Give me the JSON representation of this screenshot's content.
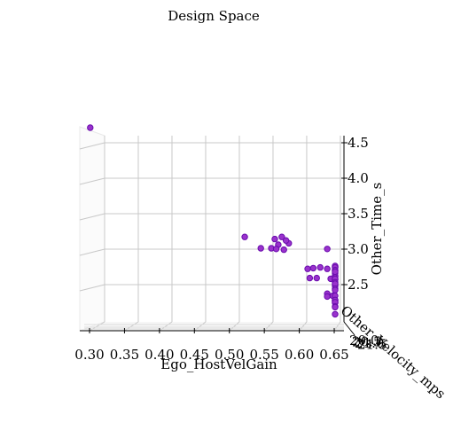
{
  "chart_data": {
    "type": "scatter",
    "projection": "3d",
    "title": "Design Space",
    "xlabel": "Ego_HostVelGain",
    "ylabel": "Other_Velocity_mps",
    "zlabel": "Other_Time_s",
    "xlim": [
      0.3,
      0.65
    ],
    "zlim": [
      2.0,
      4.6
    ],
    "x_ticks": [
      "0.30",
      "0.35",
      "0.40",
      "0.45",
      "0.50",
      "0.55",
      "0.60",
      "0.65"
    ],
    "y_ticks": [
      "20.0",
      "20.5",
      "21.0",
      "21.5"
    ],
    "z_ticks": [
      "2.5",
      "3.0",
      "3.5",
      "4.0",
      "4.5"
    ],
    "grid": true,
    "marker_color": "#9932cc",
    "marker_edge_color": "#6a0dad",
    "series": [
      {
        "points": [
          {
            "x": 0.301,
            "z": 4.75
          },
          {
            "x": 0.522,
            "z": 3.21
          },
          {
            "x": 0.545,
            "z": 3.05
          },
          {
            "x": 0.56,
            "z": 3.05
          },
          {
            "x": 0.565,
            "z": 3.18
          },
          {
            "x": 0.57,
            "z": 3.1
          },
          {
            "x": 0.575,
            "z": 3.21
          },
          {
            "x": 0.578,
            "z": 3.03
          },
          {
            "x": 0.585,
            "z": 3.12
          },
          {
            "x": 0.64,
            "z": 3.04
          },
          {
            "x": 0.567,
            "z": 3.04
          },
          {
            "x": 0.581,
            "z": 3.16
          },
          {
            "x": 0.612,
            "z": 2.76
          },
          {
            "x": 0.62,
            "z": 2.77
          },
          {
            "x": 0.63,
            "z": 2.78
          },
          {
            "x": 0.64,
            "z": 2.76
          },
          {
            "x": 0.652,
            "z": 2.79
          },
          {
            "x": 0.66,
            "z": 2.78
          },
          {
            "x": 0.67,
            "z": 2.8
          },
          {
            "x": 0.68,
            "z": 2.78
          },
          {
            "x": 0.69,
            "z": 2.74
          },
          {
            "x": 0.71,
            "z": 2.74
          },
          {
            "x": 0.615,
            "z": 2.63
          },
          {
            "x": 0.625,
            "z": 2.63
          },
          {
            "x": 0.645,
            "z": 2.62
          },
          {
            "x": 0.66,
            "z": 2.65
          },
          {
            "x": 0.672,
            "z": 2.66
          },
          {
            "x": 0.682,
            "z": 2.61
          },
          {
            "x": 0.693,
            "z": 2.61
          },
          {
            "x": 0.702,
            "z": 2.62
          },
          {
            "x": 0.706,
            "z": 2.57
          },
          {
            "x": 0.712,
            "z": 2.52
          },
          {
            "x": 0.69,
            "z": 2.54
          },
          {
            "x": 0.676,
            "z": 2.55
          },
          {
            "x": 0.67,
            "z": 2.48
          },
          {
            "x": 0.686,
            "z": 2.46
          },
          {
            "x": 0.673,
            "z": 2.7
          },
          {
            "x": 0.662,
            "z": 2.72
          },
          {
            "x": 0.64,
            "z": 2.41
          },
          {
            "x": 0.648,
            "z": 2.38
          },
          {
            "x": 0.64,
            "z": 2.37
          },
          {
            "x": 0.66,
            "z": 2.38
          },
          {
            "x": 0.673,
            "z": 2.28
          },
          {
            "x": 0.696,
            "z": 2.32
          },
          {
            "x": 0.706,
            "z": 2.29
          },
          {
            "x": 0.716,
            "z": 2.31
          },
          {
            "x": 0.723,
            "z": 2.32
          },
          {
            "x": 0.735,
            "z": 2.29
          },
          {
            "x": 0.705,
            "z": 2.23
          },
          {
            "x": 0.721,
            "z": 2.22
          },
          {
            "x": 0.695,
            "z": 2.12
          }
        ]
      }
    ]
  }
}
